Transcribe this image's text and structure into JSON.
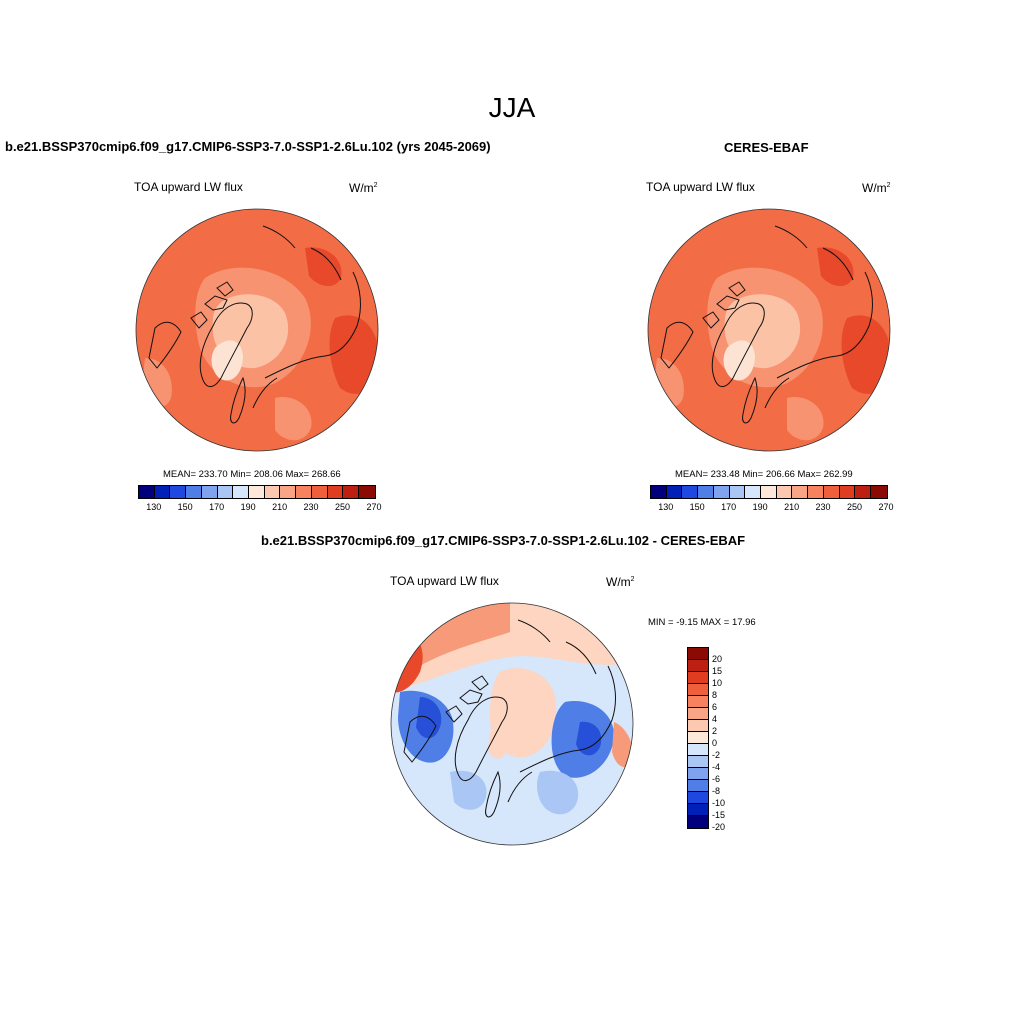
{
  "figure": {
    "title": "JJA"
  },
  "panels": {
    "model": {
      "title": "b.e21.BSSP370cmip6.f09_g17.CMIP6-SSP3-7.0-SSP1-2.6Lu.102 (yrs 2045-2069)",
      "variable": "TOA upward LW flux",
      "units": "W/m",
      "units_sup": "2",
      "stats": "MEAN= 233.70  Min= 208.06  Max= 268.66",
      "map_colors": {
        "base": "#f26c45",
        "mid": "#f79371",
        "light": "#fbc2a6",
        "dark": "#e8492a"
      }
    },
    "obs": {
      "title": "CERES-EBAF",
      "variable": "TOA upward LW flux",
      "units": "W/m",
      "units_sup": "2",
      "stats": "MEAN= 233.48  Min= 206.66  Max= 262.99",
      "map_colors": {
        "base": "#f26c45",
        "mid": "#f79371",
        "light": "#fbc2a6",
        "dark": "#e8492a"
      }
    },
    "diff": {
      "title": "b.e21.BSSP370cmip6.f09_g17.CMIP6-SSP3-7.0-SSP1-2.6Lu.102 - CERES-EBAF",
      "variable": "TOA upward LW flux",
      "units": "W/m",
      "units_sup": "2",
      "minmax": "MIN =  -9.15 MAX =  17.96",
      "map_colors": {
        "base": "#d6e6fb",
        "blue": "#4f7fe6",
        "darkblue": "#2650d8",
        "pale": "#a9c6f5",
        "peach": "#fdd5c0",
        "salmon": "#f79a7a",
        "red": "#e8492a"
      }
    }
  },
  "colorbar_abs": {
    "colors": [
      "#00007f",
      "#0020b8",
      "#1f48e0",
      "#4f7fe6",
      "#7fa3ef",
      "#a9c6f5",
      "#d6e6fb",
      "#fde8d9",
      "#fcc8b0",
      "#f9a585",
      "#f68260",
      "#f05f3c",
      "#e03c20",
      "#bd1f10",
      "#8c0a04"
    ],
    "ticks": [
      "130",
      "150",
      "170",
      "190",
      "210",
      "230",
      "250",
      "270"
    ]
  },
  "colorbar_diff": {
    "colors": [
      "#8c0a04",
      "#bd1f10",
      "#e03c20",
      "#f05f3c",
      "#f68260",
      "#f9a585",
      "#fcc8b0",
      "#fde8d9",
      "#d6e6fb",
      "#a9c6f5",
      "#7fa3ef",
      "#4f7fe6",
      "#1f48e0",
      "#0020b8",
      "#00007f"
    ],
    "labels": [
      "20",
      "15",
      "10",
      "8",
      "6",
      "4",
      "2",
      "0",
      "-2",
      "-4",
      "-6",
      "-8",
      "-10",
      "-15",
      "-20"
    ]
  }
}
